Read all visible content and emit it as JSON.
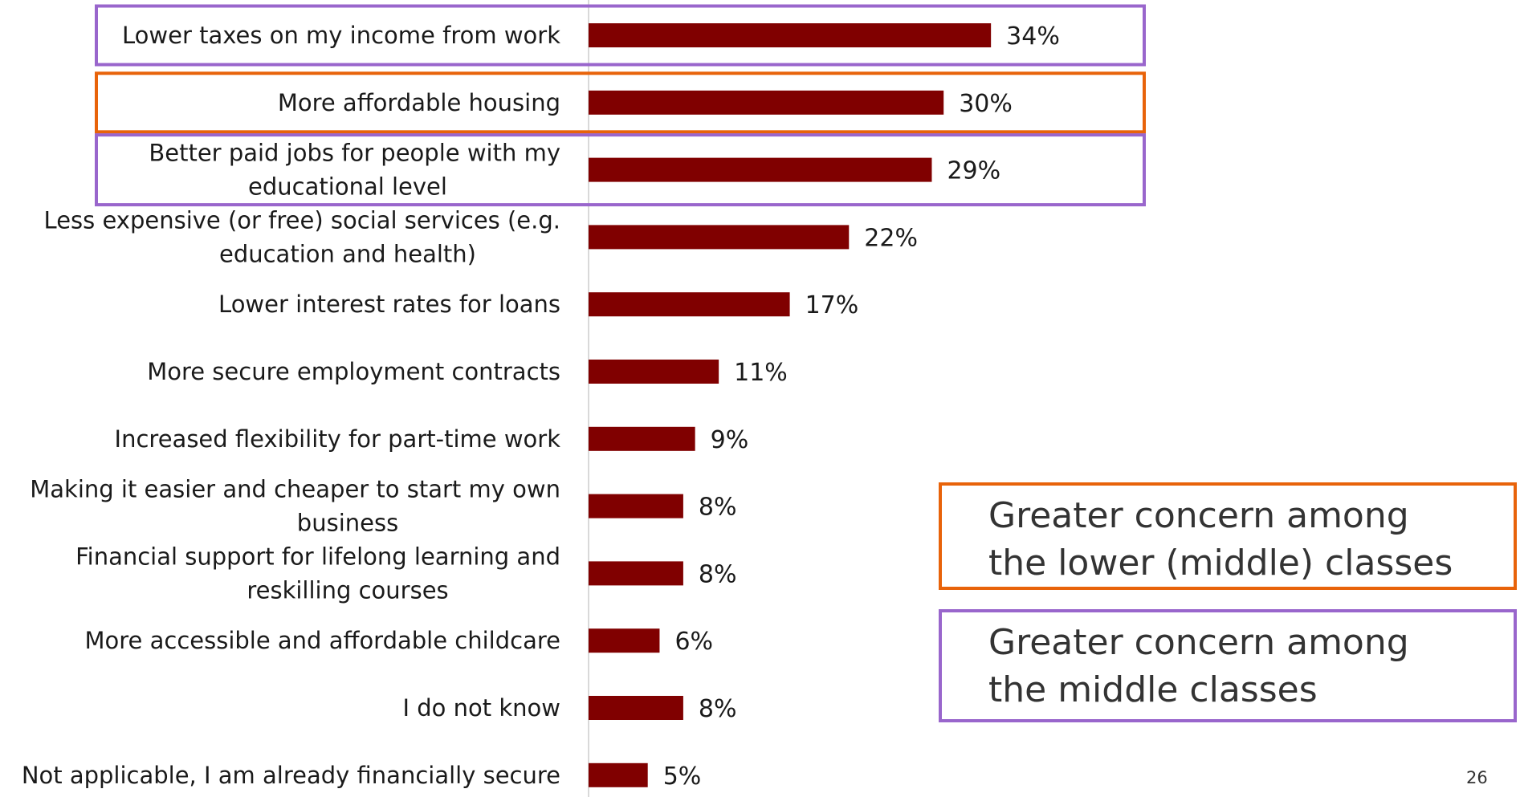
{
  "chart_data": {
    "type": "bar",
    "orientation": "horizontal",
    "categories": [
      [
        "Lower taxes on my income from work"
      ],
      [
        "More affordable housing"
      ],
      [
        "Better paid jobs for people with my",
        "educational level"
      ],
      [
        "Less expensive (or free) social services (e.g.",
        "education and health)"
      ],
      [
        "Lower interest rates for loans"
      ],
      [
        "More secure employment contracts"
      ],
      [
        "Increased flexibility for part-time work"
      ],
      [
        "Making it easier and cheaper to start my own",
        "business"
      ],
      [
        "Financial support for lifelong learning and",
        "reskilling courses"
      ],
      [
        "More accessible and affordable childcare"
      ],
      [
        "I do not know"
      ],
      [
        "Not applicable, I am already financially secure"
      ]
    ],
    "values": [
      34,
      30,
      29,
      22,
      17,
      11,
      9,
      8,
      8,
      6,
      8,
      5
    ],
    "value_labels": [
      "34%",
      "30%",
      "29%",
      "22%",
      "17%",
      "11%",
      "9%",
      "8%",
      "8%",
      "6%",
      "8%",
      "5%"
    ],
    "highlights": [
      "purple",
      "orange",
      "purple",
      null,
      null,
      null,
      null,
      null,
      null,
      null,
      null,
      null
    ],
    "xlim": [
      0,
      40
    ],
    "grid": false,
    "colors": {
      "bar": "#800000",
      "axis": "#d9d9d9",
      "orange": "#e8630a",
      "purple": "#9966cc"
    }
  },
  "legend": {
    "orange_text": "Greater concern among the lower (middle) classes",
    "purple_text": "Greater concern among the middle classes"
  },
  "page_number": "26"
}
